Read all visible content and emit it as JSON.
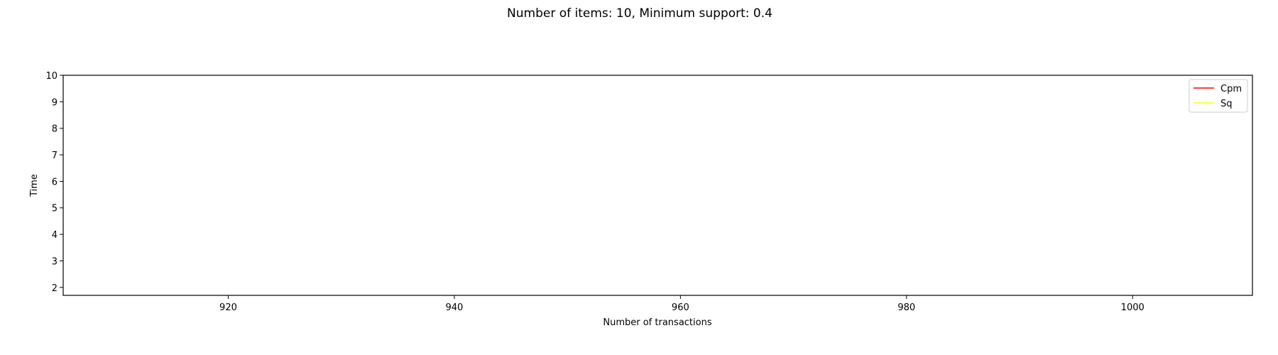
{
  "chart_data": {
    "type": "line",
    "title": "Number of items: 10, Minimum support: 0.4",
    "xlabel": "Number of transactions",
    "ylabel": "Time",
    "xlim": [
      905.4,
      1010.6
    ],
    "ylim": [
      1.7,
      10.0
    ],
    "xticks": [
      920,
      940,
      960,
      980,
      1000
    ],
    "yticks": [
      2,
      3,
      4,
      5,
      6,
      7,
      8,
      9,
      10
    ],
    "grid": false,
    "legend_position": "top-right",
    "series": [
      {
        "name": "Cpm",
        "color": "#ff0000",
        "x": [],
        "y": []
      },
      {
        "name": "Sq",
        "color": "#ffff00",
        "x": [],
        "y": []
      }
    ]
  }
}
